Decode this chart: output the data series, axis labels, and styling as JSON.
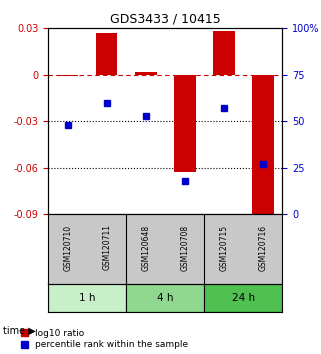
{
  "title": "GDS3433 / 10415",
  "samples": [
    "GSM120710",
    "GSM120711",
    "GSM120648",
    "GSM120708",
    "GSM120715",
    "GSM120716"
  ],
  "log10_ratio": [
    -0.001,
    0.027,
    0.002,
    -0.063,
    0.028,
    -0.09
  ],
  "percentile_rank": [
    48,
    60,
    53,
    18,
    57,
    27
  ],
  "groups": [
    {
      "label": "1 h",
      "indices": [
        0,
        1
      ],
      "color": "#c8f0c8"
    },
    {
      "label": "4 h",
      "indices": [
        2,
        3
      ],
      "color": "#90d890"
    },
    {
      "label": "24 h",
      "indices": [
        4,
        5
      ],
      "color": "#50c050"
    }
  ],
  "ylim_left": [
    -0.09,
    0.03
  ],
  "ylim_right": [
    0,
    100
  ],
  "yticks_left": [
    -0.09,
    -0.06,
    -0.03,
    0,
    0.03
  ],
  "yticks_right": [
    0,
    25,
    50,
    75,
    100
  ],
  "ytick_labels_left": [
    "-0.09",
    "-0.06",
    "-0.03",
    "0",
    "0.03"
  ],
  "ytick_labels_right": [
    "0",
    "25",
    "50",
    "75",
    "100%"
  ],
  "hlines": [
    -0.03,
    -0.06
  ],
  "zero_line_y": 0,
  "bar_color": "#cc0000",
  "dot_color": "#0000cc",
  "background_plot": "#ffffff",
  "background_sample": "#c8c8c8",
  "legend_bar_label": "log10 ratio",
  "legend_dot_label": "percentile rank within the sample",
  "time_label": "time",
  "bar_width": 0.55
}
